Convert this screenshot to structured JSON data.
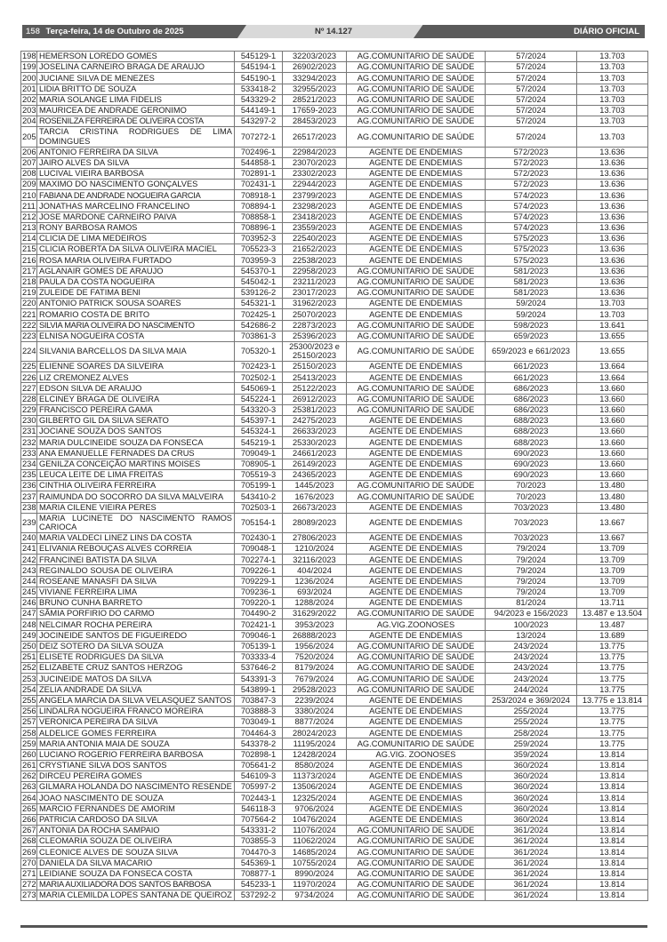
{
  "header": {
    "page_number": "158",
    "date": "Terça-feira, 14 de Outubro de 2025",
    "edition": "Nº 14.127",
    "publication": "DIÁRIO OFICIAL"
  },
  "table": {
    "rows": [
      [
        "198.",
        "HEMERSON LOREDO GOMES",
        "545129-1",
        "32203/2023",
        "AG.COMUNITARIO DE SAÚDE",
        "57/2024",
        "13.703"
      ],
      [
        "199.",
        "JOSELINA CARNEIRO BRAGA DE ARAUJO",
        "545194-1",
        "26902/2023",
        "AG.COMUNITARIO DE SAÚDE",
        "57/2024",
        "13.703"
      ],
      [
        "200.",
        "JUCIANE SILVA DE MENEZES",
        "545190-1",
        "33294/2023",
        "AG.COMUNITARIO DE SAÚDE",
        "57/2024",
        "13.703"
      ],
      [
        "201.",
        "LIDIA BRITTO DE SOUZA",
        "533418-2",
        "32955/2023",
        "AG.COMUNITARIO DE SAÚDE",
        "57/2024",
        "13.703"
      ],
      [
        "202.",
        "MARIA SOLANGE LIMA FIDELIS",
        "543329-2",
        "28521/2023",
        "AG.COMUNITARIO DE SAÚDE",
        "57/2024",
        "13.703"
      ],
      [
        "203.",
        "MAURICEA DE ANDRADE GERONIMO",
        "544149-1",
        "17659-2023",
        "AG.COMUNITARIO DE SAÚDE",
        "57/2024",
        "13.703"
      ],
      [
        "204.",
        "ROSENILZA FERREIRA DE OLIVEIRA COSTA",
        "543297-2",
        "28453/2023",
        "AG.COMUNITARIO DE SAÚDE",
        "57/2024",
        "13.703"
      ],
      [
        "205.",
        "TARCIA CRISTINA RODRIGUES DE LIMA DOMINGUES",
        "707272-1",
        "26517/2023",
        "AG.COMUNITARIO DE SAÚDE",
        "57/2024",
        "13.703"
      ],
      [
        "206.",
        "ANTONIO FERREIRA DA SILVA",
        "702496-1",
        "22984/2023",
        "AGENTE DE ENDEMIAS",
        "572/2023",
        "13.636"
      ],
      [
        "207.",
        "JAIRO ALVES DA SILVA",
        "544858-1",
        "23070/2023",
        "AGENTE DE ENDEMIAS",
        "572/2023",
        "13.636"
      ],
      [
        "208.",
        "LUCIVAL VIEIRA BARBOSA",
        "702891-1",
        "23302/2023",
        "AGENTE DE ENDEMIAS",
        "572/2023",
        "13.636"
      ],
      [
        "209.",
        "MAXIMO DO NASCIMENTO GONÇALVES",
        "702431-1",
        "22944/2023",
        "AGENTE DE ENDEMIAS",
        "572/2023",
        "13.636"
      ],
      [
        "210.",
        "FABIANA DE ANDRADE NOGUEIRA GARCIA",
        "708918-1",
        "23799/2023",
        "AGENTE DE ENDEMIAS",
        "574/2023",
        "13.636"
      ],
      [
        "211.",
        "JONATHAS MARCELINO FRANCELINO",
        "708894-1",
        "23298/2023",
        "AGENTE DE ENDEMIAS",
        "574/2023",
        "13.636"
      ],
      [
        "212.",
        "JOSE MARDONE CARNEIRO PAIVA",
        "708858-1",
        "23418/2023",
        "AGENTE DE ENDEMIAS",
        "574/2023",
        "13.636"
      ],
      [
        "213.",
        "RONY BARBOSA RAMOS",
        "708896-1",
        "23559/2023",
        "AGENTE DE ENDEMIAS",
        "574/2023",
        "13.636"
      ],
      [
        "214.",
        "CLICIA DE LIMA MEDEIROS",
        "703952-3",
        "22540/2023",
        "AGENTE DE ENDEMIAS",
        "575/2023",
        "13.636"
      ],
      [
        "215.",
        "CLICIA ROBERTA DA SILVA OLIVEIRA MACIEL",
        "705523-3",
        "21652/2023",
        "AGENTE DE ENDEMIAS",
        "575/2023",
        "13.636"
      ],
      [
        "216.",
        "ROSA MARIA OLIVEIRA FURTADO",
        "703959-3",
        "22538/2023",
        "AGENTE DE ENDEMIAS",
        "575/2023",
        "13.636"
      ],
      [
        "217.",
        "AGLANAIR GOMES DE ARAUJO",
        "545370-1",
        "22958/2023",
        "AG.COMUNITARIO DE SAÚDE",
        "581/2023",
        "13.636"
      ],
      [
        "218.",
        "PAULA DA COSTA NOGUEIRA",
        "545042-1",
        "23211/2023",
        "AG.COMUNITARIO DE SAÚDE",
        "581/2023",
        "13.636"
      ],
      [
        "219.",
        "ZULEIDE DE FATIMA BENI",
        "539126-2",
        "23017/2023",
        "AG.COMUNITARIO DE SAÚDE",
        "581/2023",
        "13.636"
      ],
      [
        "220.",
        "ANTONIO PATRICK SOUSA SOARES",
        "545321-1",
        "31962/2023",
        "AGENTE DE ENDEMIAS",
        "59/2024",
        "13.703"
      ],
      [
        "221.",
        "ROMARIO COSTA DE BRITO",
        "702425-1",
        "25070/2023",
        "AGENTE DE ENDEMIAS",
        "59/2024",
        "13.703"
      ],
      [
        "222.",
        "SILVIA MARIA OLIVEIRA DO NASCIMENTO",
        "542686-2",
        "22873/2023",
        "AG.COMUNITARIO DE SAÚDE",
        "598/2023",
        "13.641"
      ],
      [
        "223.",
        "ELNISA NOGUEIRA COSTA",
        "703861-3",
        "25396/2023",
        "AG.COMUNITARIO DE SAÚDE",
        "659/2023",
        "13.655"
      ],
      [
        "224.",
        "SILVANIA BARCELLOS DA SILVA MAIA",
        "705320-1",
        "25300/2023 e 25150/2023",
        "AG.COMUNITARIO DE SAÚDE",
        "659/2023 e 661/2023",
        "13.655"
      ],
      [
        "225.",
        "ELIENNE SOARES DA SILVEIRA",
        "702423-1",
        "25150/2023",
        "AGENTE DE ENDEMIAS",
        "661/2023",
        "13.664"
      ],
      [
        "226.",
        "LIZ CREMONEZ ALVES",
        "702502-1",
        "25413/2023",
        "AGENTE DE ENDEMIAS",
        "661/2023",
        "13.664"
      ],
      [
        "227.",
        "EDSON SILVA DE ARAUJO",
        "545069-1",
        "25122/2023",
        "AG.COMUNITARIO DE SAÚDE",
        "686/2023",
        "13.660"
      ],
      [
        "228.",
        "ELCINEY BRAGA DE OLIVEIRA",
        "545224-1",
        "26912/2023",
        "AG.COMUNITARIO DE SAÚDE",
        "686/2023",
        "13.660"
      ],
      [
        "229.",
        "FRANCISCO PEREIRA GAMA",
        "543320-3",
        "25381/2023",
        "AG.COMUNITARIO DE SAÚDE",
        "686/2023",
        "13.660"
      ],
      [
        "230.",
        "GILBERTO GIL DA SILVA SERATO",
        "545397-1",
        "24275/2023",
        "AGENTE DE ENDEMIAS",
        "688/2023",
        "13.660"
      ],
      [
        "231.",
        "JOCIANE SOUZA DOS SANTOS",
        "545324-1",
        "26633/2023",
        "AGENTE DE ENDEMIAS",
        "688/2023",
        "13.660"
      ],
      [
        "232.",
        "MARIA DULCINEIDE SOUZA DA FONSECA",
        "545219-1",
        "25330/2023",
        "AGENTE DE ENDEMIAS",
        "688/2023",
        "13.660"
      ],
      [
        "233.",
        "ANA EMANUELLE FERNADES DA CRUS",
        "709049-1",
        "24661/2023",
        "AGENTE DE ENDEMIAS",
        "690/2023",
        "13.660"
      ],
      [
        "234.",
        "GENILZA CONCEIÇÃO MARTINS MOISES",
        "708905-1",
        "26149/2023",
        "AGENTE DE ENDEMIAS",
        "690/2023",
        "13.660"
      ],
      [
        "235.",
        "LEUCA LEITE DE LIMA FREITAS",
        "705519-3",
        "24365/2023",
        "AGENTE DE ENDEMIAS",
        "690/2023",
        "13.660"
      ],
      [
        "236.",
        "CINTHIA OLIVEIRA FERREIRA",
        "705199-1",
        "1445/2023",
        "AG.COMUNITARIO DE SAÚDE",
        "70/2023",
        "13.480"
      ],
      [
        "237.",
        "RAIMUNDA DO SOCORRO DA SILVA MALVEIRA",
        "543410-2",
        "1676/2023",
        "AG.COMUNITARIO DE SAÚDE",
        "70/2023",
        "13.480"
      ],
      [
        "238.",
        "MARIA CILENE VIEIRA PERES",
        "702503-1",
        "26673/2023",
        "AGENTE DE ENDEMIAS",
        "703/2023",
        "13.480"
      ],
      [
        "239.",
        "MARIA LUCINETE DO NASCIMENTO RAMOS CARIOCA",
        "705154-1",
        "28089/2023",
        "AGENTE DE ENDEMIAS",
        "703/2023",
        "13.667"
      ],
      [
        "240.",
        "MARIA VALDECI LINEZ LINS DA COSTA",
        "702430-1",
        "27806/2023",
        "AGENTE DE ENDEMIAS",
        "703/2023",
        "13.667"
      ],
      [
        "241.",
        "ELIVANIA REBOUÇAS ALVES CORREIA",
        "709048-1",
        "1210/2024",
        "AGENTE DE ENDEMIAS",
        "79/2024",
        "13.709"
      ],
      [
        "242.",
        "FRANCINEI BATISTA DA SILVA",
        "702274-1",
        "32116/2023",
        "AGENTE DE ENDEMIAS",
        "79/2024",
        "13.709"
      ],
      [
        "243.",
        "REGINALDO SOUSA DE OLIVEIRA",
        "709226-1",
        "404/2024",
        "AGENTE DE ENDEMIAS",
        "79/2024",
        "13.709"
      ],
      [
        "244.",
        "ROSEANE MANASFI DA SILVA",
        "709229-1",
        "1236/2024",
        "AGENTE DE ENDEMIAS",
        "79/2024",
        "13.709"
      ],
      [
        "245.",
        "VIVIANE FERREIRA LIMA",
        "709236-1",
        "693/2024",
        "AGENTE DE ENDEMIAS",
        "79/2024",
        "13.709"
      ],
      [
        "246.",
        "BRUNO CUNHA BARRETO",
        "709220-1",
        "1288/2024",
        "AGENTE DE ENDEMIAS",
        "81/2024",
        "13.711"
      ],
      [
        "247.",
        "SÂMIA  PORFIRIO DO CARMO",
        "704490-2",
        "31629/2022",
        "AG.COMUNITARIO DE SAÚDE",
        "94/2023 e 156/2023",
        "13.487 e 13.504"
      ],
      [
        "248.",
        "NELCIMAR ROCHA PEREIRA",
        "702421-1",
        "3953/2023",
        "AG.VIG.ZOONOSES",
        "100/2023",
        "13.487"
      ],
      [
        "249.",
        "JOCINEIDE SANTOS DE FIGUEIREDO",
        "709046-1",
        "26888/2023",
        "AGENTE DE ENDEMIAS",
        "13/2024",
        "13.689"
      ],
      [
        "250.",
        "DEIZ SOTERO DA SILVA SOUZA",
        "705139-1",
        "1956/2024",
        "AG.COMUNITARIO DE SAÚDE",
        "243/2024",
        "13.775"
      ],
      [
        "251.",
        "ELISETE RODRIGUES DA SILVA",
        "703333-4",
        "7520/2024",
        "AG.COMUNITARIO DE SAÚDE",
        "243/2024",
        "13.775"
      ],
      [
        "252.",
        "ELIZABETE CRUZ SANTOS HERZOG",
        "537646-2",
        "8179/2024",
        "AG.COMUNITARIO DE SAÚDE",
        "243/2024",
        "13.775"
      ],
      [
        "253.",
        "JUCINEIDE MATOS DA SILVA",
        "543391-3",
        "7679/2024",
        "AG.COMUNITARIO DE SAÚDE",
        "243/2024",
        "13.775"
      ],
      [
        "254.",
        "ZELIA ANDRADE DA SILVA",
        "543899-1",
        "29528/2023",
        "AG.COMUNITARIO DE SAÚDE",
        "244/2024",
        "13.775"
      ],
      [
        "255.",
        "ANGELA MARCIA DA SILVA VELASQUEZ SANTOS",
        "703847-3",
        "2239/2024",
        "AGENTE DE ENDEMIAS",
        "253/2024 e 369/2024",
        "13.775 e 13.814"
      ],
      [
        "256.",
        "LINDALRA NOGUEIRA FRANCO MOREIRA",
        "703888-3",
        "3380/2024",
        "AGENTE DE ENDEMIAS",
        "255/2024",
        "13.775"
      ],
      [
        "257.",
        "VERONICA PEREIRA DA SILVA",
        "703049-1",
        "8877/2024",
        "AGENTE DE ENDEMIAS",
        "255/2024",
        "13.775"
      ],
      [
        "258.",
        "ALDELICE GOMES FERREIRA",
        "704464-3",
        "28024/2023",
        "AGENTE DE ENDEMIAS",
        "258/2024",
        "13.775"
      ],
      [
        "259.",
        "MARIA ANTONIA MAIA DE SOUZA",
        "543378-2",
        "11195/2024",
        "AG.COMUNITARIO DE SAÚDE",
        "259/2024",
        "13.775"
      ],
      [
        "260.",
        "LUCIANO ROGERIO FERREIRA BARBOSA",
        "702898-1",
        "12428/2024",
        "AG.VIG. ZOONOSES",
        "359/2024",
        "13.814"
      ],
      [
        "261.",
        "CRYSTIANE SILVA DOS SANTOS",
        "705641-2",
        "8580/2024",
        "AGENTE DE ENDEMIAS",
        "360/2024",
        "13.814"
      ],
      [
        "262.",
        "DIRCEU PEREIRA GOMES",
        "546109-3",
        "11373/2024",
        "AGENTE DE ENDEMIAS",
        "360/2024",
        "13.814"
      ],
      [
        "263.",
        "GILMARA HOLANDA DO NASCIMENTO RESENDE",
        "705997-2",
        "13506/2024",
        "AGENTE DE ENDEMIAS",
        "360/2024",
        "13.814"
      ],
      [
        "264.",
        "JOAO NASCIMENTO DE SOUZA",
        "702443-1",
        "12325/2024",
        "AGENTE DE ENDEMIAS",
        "360/2024",
        "13.814"
      ],
      [
        "265.",
        "MARCIO FERNANDES DE AMORIM",
        "546118-3",
        "9706/2024",
        "AGENTE DE ENDEMIAS",
        "360/2024",
        "13.814"
      ],
      [
        "266.",
        "PATRICIA CARDOSO DA SILVA",
        "707564-2",
        "10476/2024",
        "AGENTE DE ENDEMIAS",
        "360/2024",
        "13.814"
      ],
      [
        "267.",
        "ANTONIA DA ROCHA SAMPAIO",
        "543331-2",
        "11076/2024",
        "AG.COMUNITARIO DE SAÚDE",
        "361/2024",
        "13.814"
      ],
      [
        "268.",
        "CLEOMARIA SOUZA DE OLIVEIRA",
        "703855-3",
        "11062/2024",
        "AG.COMUNITARIO DE SAÚDE",
        "361/2024",
        "13.814"
      ],
      [
        "269.",
        "CLEONICE ALVES DE SOUZA SILVA",
        "704470-3",
        "14685/2024",
        "AG.COMUNITARIO DE SAÚDE",
        "361/2024",
        "13.814"
      ],
      [
        "270.",
        "DANIELA DA SILVA MACARIO",
        "545369-1",
        "10755/2024",
        "AG.COMUNITARIO DE SAÚDE",
        "361/2024",
        "13.814"
      ],
      [
        "271.",
        "LEIDIANE SOUZA DA FONSECA COSTA",
        "708877-1",
        "8990/2024",
        "AG.COMUNITARIO DE SAÚDE",
        "361/2024",
        "13.814"
      ],
      [
        "272.",
        "MARIA AUXILIADORA DOS SANTOS BARBOSA",
        "545233-1",
        "11970/2024",
        "AG.COMUNITARIO DE SAÚDE",
        "361/2024",
        "13.814"
      ],
      [
        "273.",
        "MARIA CLEMILDA LOPES SANTANA DE QUEIROZ",
        "537292-2",
        "9734/2024",
        "AG.COMUNITARIO DE SAÚDE",
        "361/2024",
        "13.814"
      ]
    ]
  }
}
